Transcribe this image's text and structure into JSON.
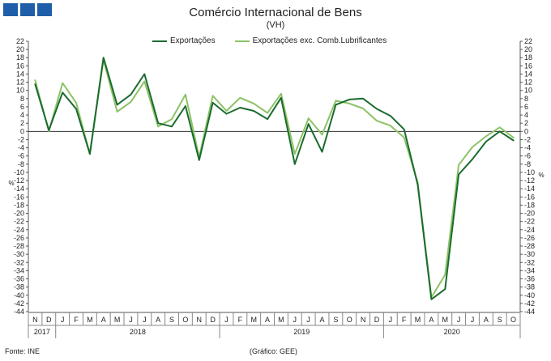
{
  "header": {
    "title": "Comércio Internacional de Bens",
    "subtitle": "(VH)",
    "source": "Fonte: INE",
    "credit": "(Gráfico: GEE)"
  },
  "colors": {
    "logo": "#1f5ea8",
    "exports": "#1a6b2e",
    "exports_ex": "#8cc265",
    "axis": "#555555",
    "zero_line": "#333333"
  },
  "chart_data": {
    "type": "line",
    "title": "Comércio Internacional de Bens",
    "subtitle": "(VH)",
    "ylabel_left": "%",
    "ylabel_right": "%",
    "ylim": [
      -44,
      22
    ],
    "ytick_step": 2,
    "grid": false,
    "legend_position": "top",
    "x": [
      "N",
      "D",
      "J",
      "F",
      "M",
      "A",
      "M",
      "J",
      "J",
      "A",
      "S",
      "O",
      "N",
      "D",
      "J",
      "F",
      "M",
      "A",
      "M",
      "J",
      "J",
      "A",
      "S",
      "O",
      "N",
      "D",
      "J",
      "F",
      "M",
      "A",
      "M",
      "J",
      "J",
      "A",
      "S",
      "O"
    ],
    "year_groups": [
      {
        "label": "2017",
        "start": 0,
        "end": 1
      },
      {
        "label": "2018",
        "start": 2,
        "end": 13
      },
      {
        "label": "2019",
        "start": 14,
        "end": 25
      },
      {
        "label": "2020",
        "start": 26,
        "end": 35
      }
    ],
    "series": [
      {
        "name": "Exportações",
        "color": "#1a6b2e",
        "values": [
          11.5,
          0.3,
          9.5,
          5.5,
          -5.5,
          18,
          6.5,
          9,
          14,
          2,
          1.2,
          6.2,
          -7,
          7,
          4.3,
          5.8,
          5,
          3,
          8.2,
          -8,
          1.8,
          -5,
          6.5,
          7.8,
          8,
          5.5,
          3.8,
          0.5,
          -13,
          -41,
          -38.5,
          -10.5,
          -6.8,
          -2.5,
          0,
          -2.2
        ]
      },
      {
        "name": "Exportações exc. Comb.Lubrificantes",
        "color": "#8cc265",
        "values": [
          12.5,
          0,
          11.8,
          7,
          -5.5,
          17.5,
          4.8,
          7.2,
          12.2,
          1.2,
          3,
          9,
          -6.3,
          8.7,
          5,
          8.2,
          6.8,
          4.5,
          9.2,
          -5.5,
          3.2,
          -0.8,
          7.5,
          6.8,
          5.6,
          2.6,
          1.4,
          -1.5,
          -12.5,
          -40.5,
          -35,
          -8.2,
          -3.8,
          -1.2,
          1,
          -1.5
        ]
      }
    ]
  }
}
